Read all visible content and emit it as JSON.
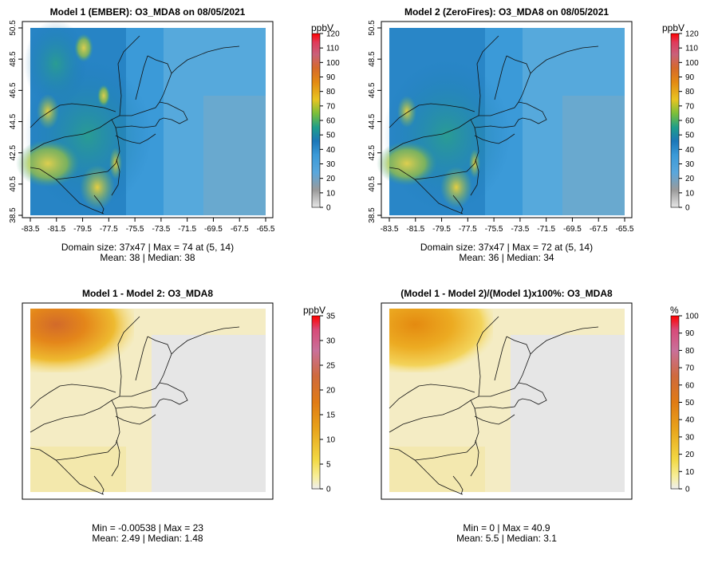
{
  "chart_data": [
    {
      "type": "heatmap",
      "title": "Model 1 (EMBER): O3_MDA8 on 08/05/2021",
      "x_ticks": [
        "-83.5",
        "-81.5",
        "-79.5",
        "-77.5",
        "-75.5",
        "-73.5",
        "-71.5",
        "-69.5",
        "-67.5",
        "-65.5"
      ],
      "y_ticks": [
        "38.5",
        "40.5",
        "42.5",
        "44.5",
        "46.5",
        "48.5",
        "50.5"
      ],
      "xlim": [
        -83.5,
        -65.5
      ],
      "ylim": [
        38.5,
        50.5
      ],
      "colorbar": {
        "unit": "ppbV",
        "ticks": [
          0,
          10,
          20,
          30,
          40,
          50,
          60,
          70,
          80,
          90,
          100,
          110,
          120
        ],
        "range": [
          0,
          120
        ]
      },
      "stats_line1": "Domain size: 37x47 | Max = 74 at (5, 14)",
      "stats_line2": "Mean: 38 |  Median: 38",
      "values": {
        "domain_size": "37x47",
        "max": 74,
        "max_at": [
          5,
          14
        ],
        "mean": 38,
        "median": 38
      }
    },
    {
      "type": "heatmap",
      "title": "Model 2 (ZeroFires): O3_MDA8 on 08/05/2021",
      "x_ticks": [
        "-83.5",
        "-81.5",
        "-79.5",
        "-77.5",
        "-75.5",
        "-73.5",
        "-71.5",
        "-69.5",
        "-67.5",
        "-65.5"
      ],
      "y_ticks": [
        "38.5",
        "40.5",
        "42.5",
        "44.5",
        "46.5",
        "48.5",
        "50.5"
      ],
      "xlim": [
        -83.5,
        -65.5
      ],
      "ylim": [
        38.5,
        50.5
      ],
      "colorbar": {
        "unit": "ppbV",
        "ticks": [
          0,
          10,
          20,
          30,
          40,
          50,
          60,
          70,
          80,
          90,
          100,
          110,
          120
        ],
        "range": [
          0,
          120
        ]
      },
      "stats_line1": "Domain size: 37x47 | Max = 72 at (5, 14)",
      "stats_line2": "Mean: 36 |  Median: 34",
      "values": {
        "domain_size": "37x47",
        "max": 72,
        "max_at": [
          5,
          14
        ],
        "mean": 36,
        "median": 34
      }
    },
    {
      "type": "heatmap",
      "title": "Model 1 - Model 2: O3_MDA8",
      "colorbar": {
        "unit": "ppbV",
        "ticks": [
          0,
          5,
          10,
          15,
          20,
          25,
          30,
          35
        ],
        "range": [
          0,
          35
        ]
      },
      "stats_line1": "Min = -0.00538 | Max = 23",
      "stats_line2": "Mean: 2.49 |  Median: 1.48",
      "values": {
        "min": -0.00538,
        "max": 23,
        "mean": 2.49,
        "median": 1.48
      }
    },
    {
      "type": "heatmap",
      "title": "(Model 1 - Model 2)/(Model 1)x100%: O3_MDA8",
      "colorbar": {
        "unit": "%",
        "ticks": [
          0,
          10,
          20,
          30,
          40,
          50,
          60,
          70,
          80,
          90,
          100
        ],
        "range": [
          0,
          100
        ]
      },
      "stats_line1": "Min = 0 | Max = 40.9",
      "stats_line2": "Mean: 5.5 |  Median: 3.1",
      "values": {
        "min": 0,
        "max": 40.9,
        "mean": 5.5,
        "median": 3.1
      }
    }
  ]
}
